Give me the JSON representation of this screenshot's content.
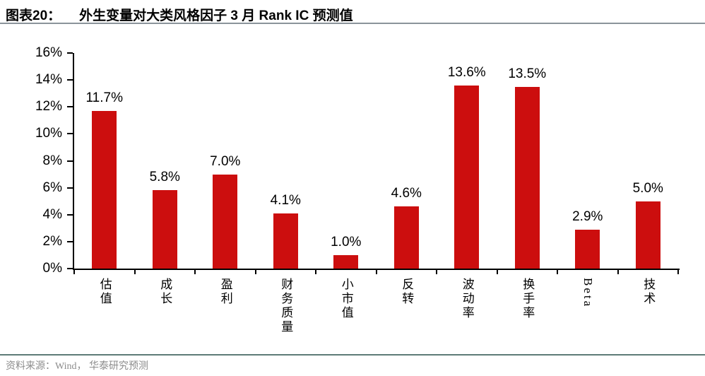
{
  "header": {
    "figure_label": "图表20：",
    "title": "外生变量对大类风格因子 3 月 Rank IC 预测值"
  },
  "footer": {
    "source": "资料来源：Wind， 华泰研究预测"
  },
  "chart_data": {
    "type": "bar",
    "title": "外生变量对大类风格因子 3 月 Rank IC 预测值",
    "categories": [
      "估值",
      "成长",
      "盈利",
      "财务质量",
      "小市值",
      "反转",
      "波动率",
      "换手率",
      "Beta",
      "技术"
    ],
    "values": [
      11.7,
      5.8,
      7.0,
      4.1,
      1.0,
      4.6,
      13.6,
      13.5,
      2.9,
      5.0
    ],
    "data_labels": [
      "11.7%",
      "5.8%",
      "7.0%",
      "4.1%",
      "1.0%",
      "4.6%",
      "13.6%",
      "13.5%",
      "2.9%",
      "5.0%"
    ],
    "unit": "%",
    "xlabel": "",
    "ylabel": "",
    "ylim": [
      0,
      16
    ],
    "ytick_step": 2,
    "ytick_labels": [
      "0%",
      "2%",
      "4%",
      "6%",
      "8%",
      "10%",
      "12%",
      "14%",
      "16%"
    ],
    "grid": false,
    "legend": "none",
    "bar_color": "#cc0e0e",
    "axis_color": "#000000",
    "label_color": "#000000"
  }
}
